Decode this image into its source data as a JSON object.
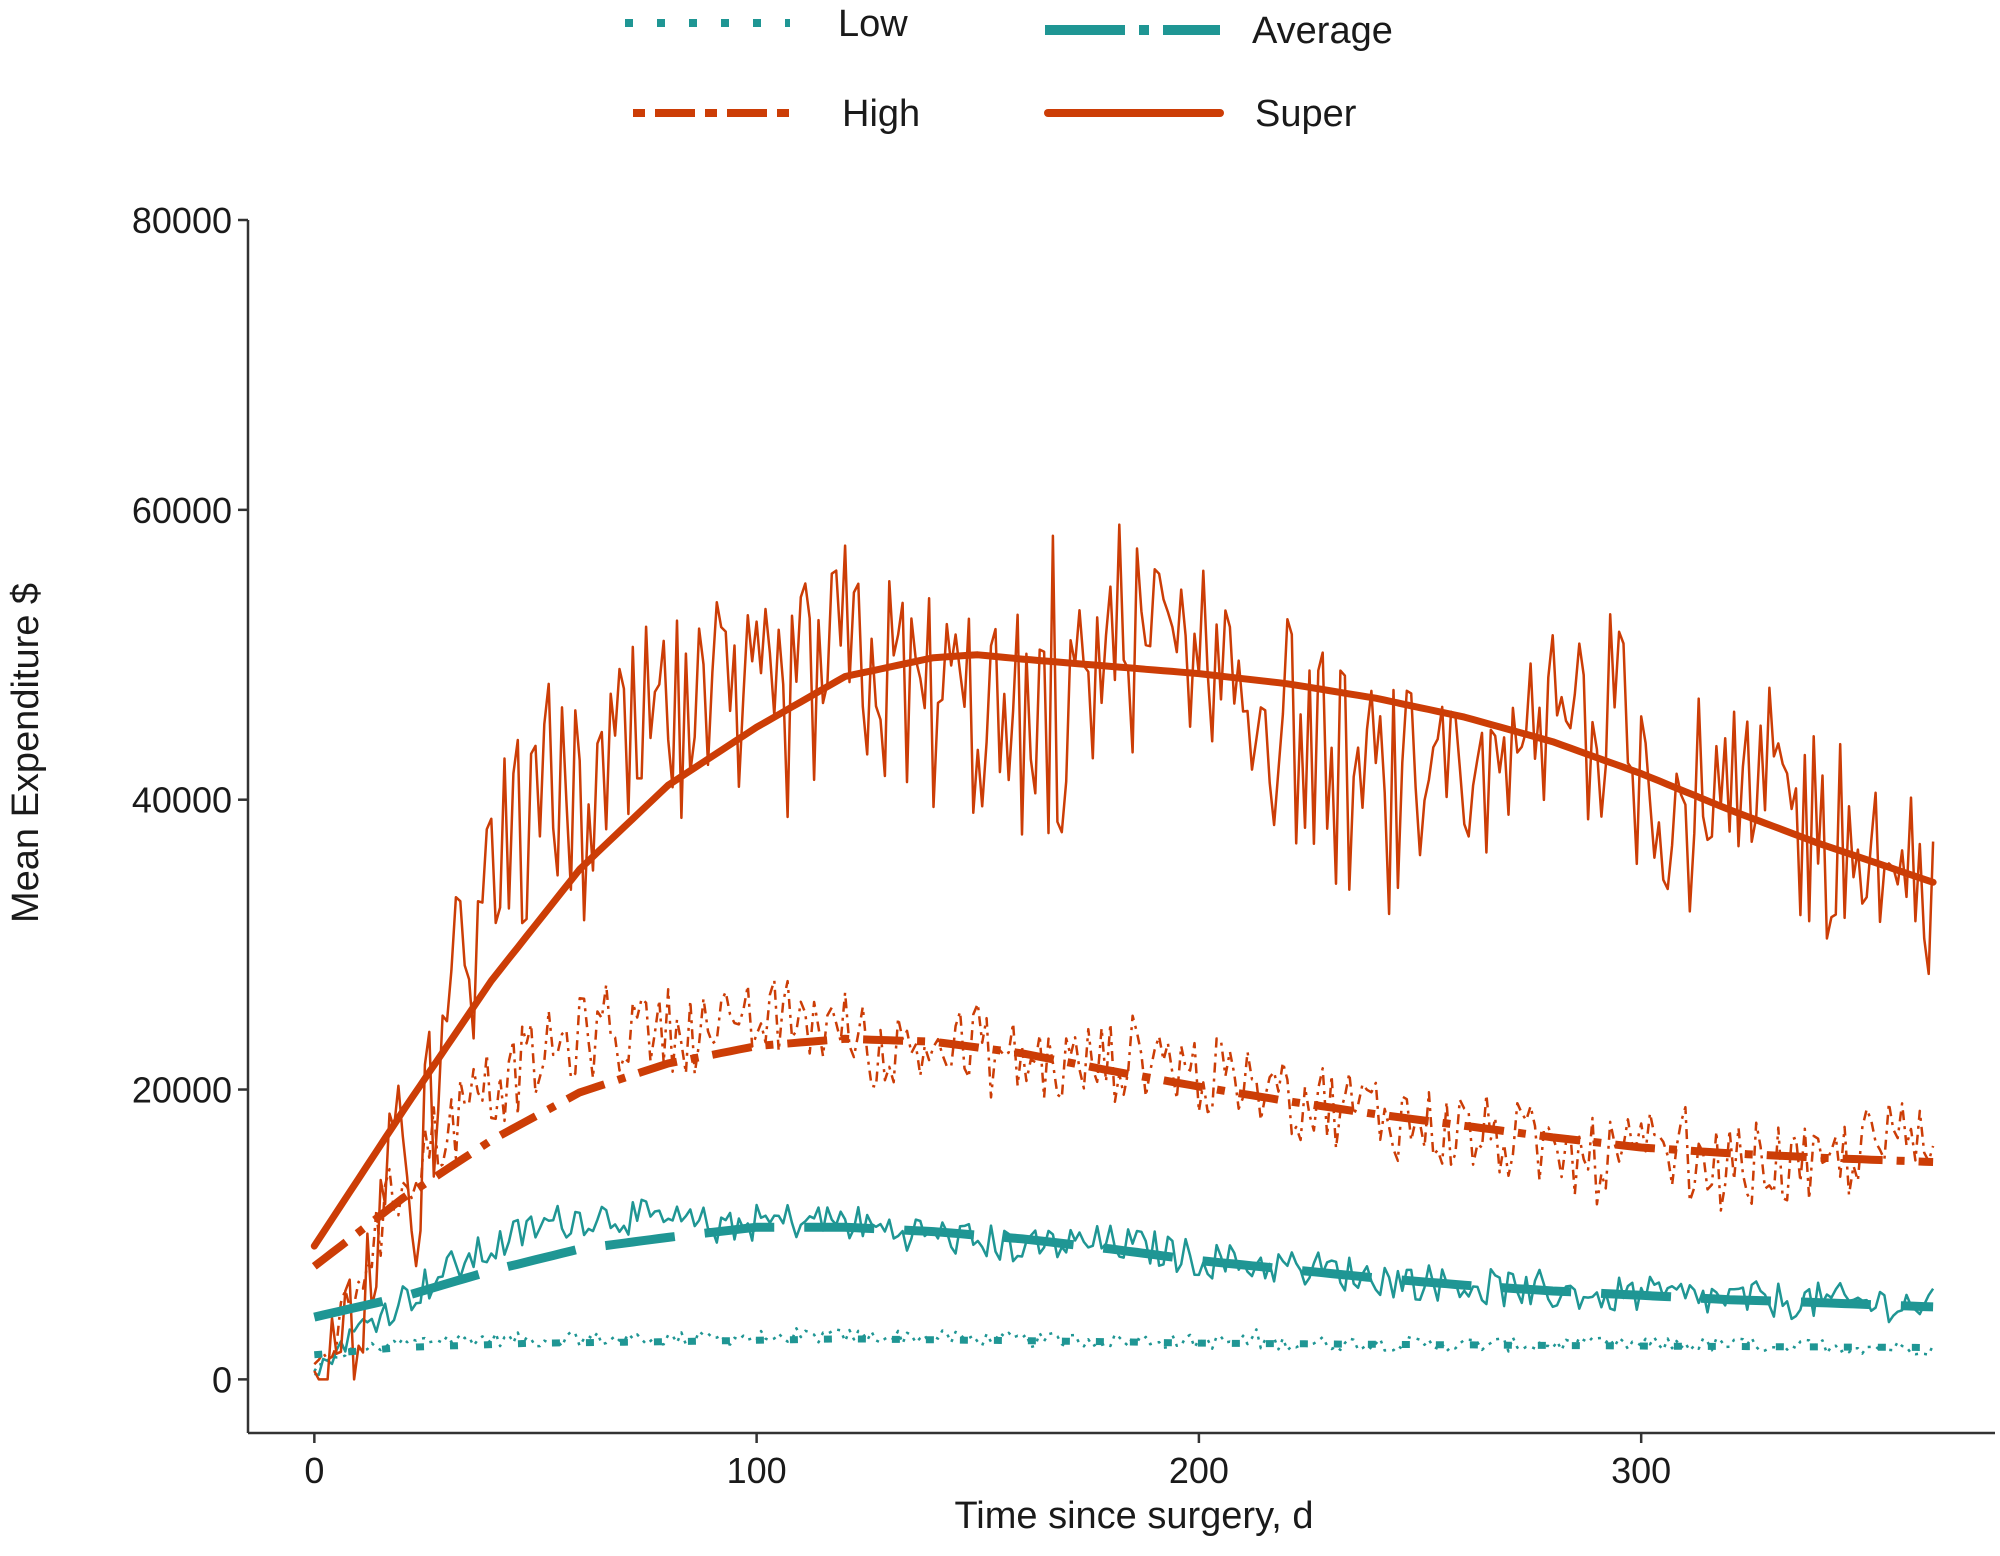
{
  "chart_data": {
    "type": "line",
    "xlabel": "Time since surgery, d",
    "ylabel": "Mean Expenditure $",
    "xlim": [
      -15,
      380
    ],
    "ylim": [
      -3700,
      80000
    ],
    "x_ticks": [
      0,
      100,
      200,
      300
    ],
    "y_ticks": [
      0,
      20000,
      40000,
      60000,
      80000
    ],
    "grid": false,
    "legend_position": "top",
    "legend": [
      {
        "label": "Low",
        "color": "#1f9694",
        "style": "dotted-square"
      },
      {
        "label": "Average",
        "color": "#1f9694",
        "style": "long-dash"
      },
      {
        "label": "High",
        "color": "#cc3d06",
        "style": "dash-dot"
      },
      {
        "label": "Super",
        "color": "#cc3d06",
        "style": "solid"
      }
    ],
    "series": [
      {
        "name": "Low",
        "color": "#1f9694",
        "x": [
          0,
          5,
          10,
          20,
          30,
          40,
          50,
          60,
          80,
          100,
          120,
          140,
          160,
          180,
          200,
          220,
          240,
          260,
          280,
          300,
          320,
          340,
          360,
          366
        ],
        "values": [
          500,
          1600,
          2100,
          2500,
          2800,
          2800,
          2700,
          2800,
          2800,
          2900,
          3000,
          2900,
          2700,
          2700,
          2600,
          2500,
          2500,
          2400,
          2400,
          2400,
          2400,
          2300,
          2200,
          2200
        ],
        "trend_x": [
          0,
          20,
          50,
          80,
          100,
          120,
          150,
          180,
          200,
          250,
          300,
          366
        ],
        "trend": [
          1700,
          2200,
          2500,
          2600,
          2700,
          2800,
          2700,
          2600,
          2500,
          2400,
          2300,
          2200
        ],
        "noise": 500
      },
      {
        "name": "Average",
        "color": "#1f9694",
        "x": [
          0,
          5,
          10,
          20,
          30,
          40,
          50,
          60,
          70,
          80,
          90,
          100,
          110,
          120,
          130,
          140,
          150,
          160,
          170,
          180,
          190,
          200,
          210,
          220,
          230,
          240,
          260,
          280,
          300,
          320,
          340,
          360,
          366
        ],
        "values": [
          300,
          2000,
          3500,
          5500,
          7500,
          9000,
          10500,
          11200,
          11300,
          10800,
          10600,
          10800,
          11000,
          10900,
          10300,
          10000,
          9500,
          9200,
          9300,
          9400,
          9000,
          8300,
          8000,
          7800,
          7500,
          7000,
          6500,
          6000,
          5800,
          5500,
          5400,
          5200,
          5000
        ],
        "trend_x": [
          0,
          20,
          40,
          60,
          80,
          100,
          120,
          140,
          160,
          180,
          200,
          220,
          240,
          260,
          280,
          300,
          320,
          340,
          366
        ],
        "trend": [
          4300,
          5700,
          7500,
          9000,
          9800,
          10500,
          10500,
          10200,
          9700,
          9000,
          8200,
          7600,
          7000,
          6500,
          6100,
          5800,
          5500,
          5300,
          5000
        ],
        "noise": 1300
      },
      {
        "name": "High",
        "color": "#cc3d06",
        "x": [
          0,
          5,
          10,
          20,
          30,
          40,
          50,
          60,
          70,
          80,
          90,
          100,
          110,
          120,
          130,
          140,
          150,
          160,
          170,
          180,
          190,
          200,
          210,
          220,
          230,
          240,
          250,
          260,
          270,
          280,
          290,
          300,
          310,
          320,
          330,
          340,
          350,
          360,
          366
        ],
        "values": [
          500,
          3000,
          7000,
          14000,
          17500,
          20000,
          22000,
          23500,
          24000,
          24200,
          24000,
          24500,
          25000,
          24000,
          22500,
          23000,
          22500,
          22000,
          21500,
          22000,
          22500,
          21000,
          20000,
          19500,
          19000,
          18500,
          17500,
          17000,
          16500,
          15500,
          15000,
          15500,
          15000,
          14500,
          15000,
          14000,
          16000,
          16500,
          16000
        ],
        "trend_x": [
          0,
          20,
          40,
          60,
          80,
          100,
          120,
          140,
          160,
          180,
          200,
          220,
          240,
          260,
          280,
          300,
          320,
          340,
          366
        ],
        "trend": [
          7800,
          12500,
          16500,
          19800,
          21800,
          23000,
          23500,
          23300,
          22500,
          21300,
          20200,
          19200,
          18300,
          17500,
          16700,
          16000,
          15600,
          15300,
          15000
        ],
        "noise": 3000
      },
      {
        "name": "Super",
        "color": "#cc3d06",
        "x": [
          0,
          5,
          10,
          15,
          20,
          25,
          30,
          35,
          40,
          45,
          50,
          55,
          60,
          65,
          70,
          75,
          80,
          90,
          100,
          110,
          120,
          130,
          140,
          150,
          160,
          170,
          180,
          190,
          200,
          210,
          220,
          230,
          240,
          250,
          260,
          270,
          280,
          290,
          300,
          310,
          320,
          330,
          340,
          350,
          360,
          366
        ],
        "values": [
          500,
          2000,
          6000,
          10000,
          14000,
          18000,
          23000,
          30000,
          34000,
          36000,
          40000,
          41000,
          38000,
          40000,
          42000,
          44000,
          45000,
          44000,
          45000,
          47000,
          50000,
          48000,
          47000,
          46000,
          45000,
          44000,
          52000,
          50000,
          52000,
          48000,
          45000,
          42000,
          40000,
          40000,
          38000,
          40000,
          45000,
          47000,
          42000,
          40000,
          38000,
          40000,
          38000,
          36000,
          34000,
          30000
        ],
        "trend_x": [
          0,
          20,
          40,
          60,
          80,
          100,
          120,
          140,
          150,
          160,
          180,
          200,
          220,
          240,
          260,
          280,
          300,
          320,
          340,
          366
        ],
        "trend": [
          9200,
          18500,
          27500,
          35200,
          41000,
          45000,
          48500,
          49800,
          50000,
          49700,
          49200,
          48700,
          48000,
          47000,
          45700,
          44000,
          41800,
          39300,
          37000,
          34300
        ],
        "noise": 8000
      }
    ]
  }
}
